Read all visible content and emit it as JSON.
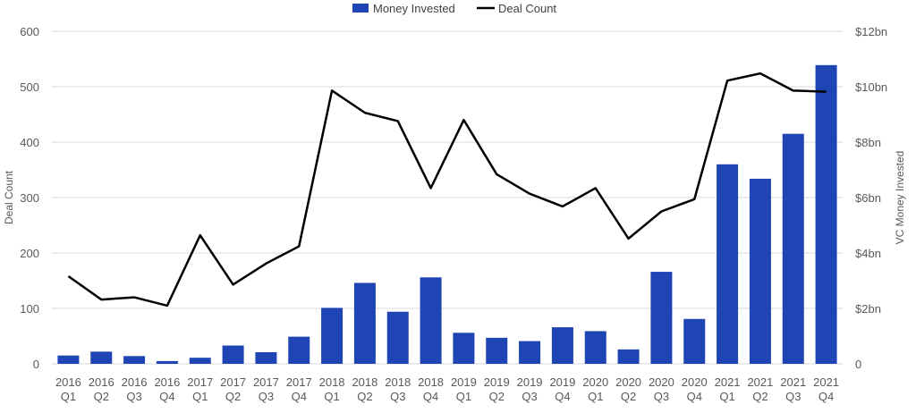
{
  "chart_data": {
    "type": "bar+line",
    "title": "",
    "categories": [
      [
        "2016",
        "Q1"
      ],
      [
        "2016",
        "Q2"
      ],
      [
        "2016",
        "Q3"
      ],
      [
        "2016",
        "Q4"
      ],
      [
        "2017",
        "Q1"
      ],
      [
        "2017",
        "Q2"
      ],
      [
        "2017",
        "Q3"
      ],
      [
        "2017",
        "Q4"
      ],
      [
        "2018",
        "Q1"
      ],
      [
        "2018",
        "Q2"
      ],
      [
        "2018",
        "Q3"
      ],
      [
        "2018",
        "Q4"
      ],
      [
        "2019",
        "Q1"
      ],
      [
        "2019",
        "Q2"
      ],
      [
        "2019",
        "Q3"
      ],
      [
        "2019",
        "Q4"
      ],
      [
        "2020",
        "Q1"
      ],
      [
        "2020",
        "Q2"
      ],
      [
        "2020",
        "Q3"
      ],
      [
        "2020",
        "Q4"
      ],
      [
        "2021",
        "Q1"
      ],
      [
        "2021",
        "Q2"
      ],
      [
        "2021",
        "Q3"
      ],
      [
        "2021",
        "Q4"
      ]
    ],
    "series": [
      {
        "name": "Money Invested",
        "type": "bar",
        "axis": "right",
        "unit": "$bn",
        "color": "#1f45b5",
        "values": [
          0.3,
          0.44,
          0.28,
          0.1,
          0.22,
          0.66,
          0.42,
          0.98,
          2.02,
          2.92,
          1.88,
          3.12,
          1.12,
          0.94,
          0.82,
          1.32,
          1.18,
          0.52,
          3.32,
          1.62,
          7.2,
          6.68,
          8.3,
          10.78
        ]
      },
      {
        "name": "Deal Count",
        "type": "line",
        "axis": "left",
        "color": "#000000",
        "values": [
          158,
          116,
          120,
          105,
          232,
          143,
          181,
          212,
          493,
          453,
          438,
          317,
          440,
          342,
          307,
          284,
          317,
          226,
          275,
          297,
          511,
          524,
          493,
          491
        ]
      }
    ],
    "ylabel_left": "Deal Count",
    "ylabel_right": "VC Money Invested",
    "ylim_left": [
      0,
      600
    ],
    "ylim_right": [
      0,
      12
    ],
    "yticks_left": [
      "0",
      "100",
      "200",
      "300",
      "400",
      "500",
      "600"
    ],
    "yticks_right": [
      "0",
      "$2bn",
      "$4bn",
      "$6bn",
      "$8bn",
      "$10bn",
      "$12bn"
    ],
    "grid": true,
    "legend": [
      "Money Invested",
      "Deal Count"
    ],
    "legend_position": "top-center"
  }
}
